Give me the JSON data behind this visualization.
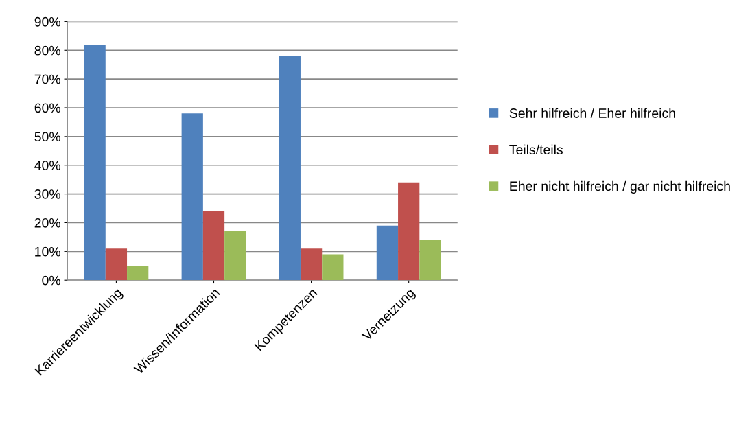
{
  "chart_data": {
    "type": "bar",
    "categories": [
      "Karriereentwicklung",
      "Wissen/Information",
      "Kompetenzen",
      "Vernetzung"
    ],
    "series": [
      {
        "name": "Sehr hilfreich / Eher hilfreich",
        "color": "#4f81bd",
        "values": [
          82,
          58,
          78,
          19
        ]
      },
      {
        "name": "Teils/teils",
        "color": "#c0504d",
        "values": [
          11,
          24,
          11,
          34
        ]
      },
      {
        "name": "Eher nicht hilfreich / gar nicht hilfreich",
        "color": "#9bbb59",
        "values": [
          5,
          17,
          9,
          14
        ]
      }
    ],
    "ylim": [
      0,
      90
    ],
    "yticks": [
      {
        "value": 0,
        "label": "0%"
      },
      {
        "value": 10,
        "label": "10%"
      },
      {
        "value": 20,
        "label": "20%"
      },
      {
        "value": 30,
        "label": "30%"
      },
      {
        "value": 40,
        "label": "40%"
      },
      {
        "value": 50,
        "label": "50%"
      },
      {
        "value": 60,
        "label": "60%"
      },
      {
        "value": 70,
        "label": "70%"
      },
      {
        "value": 80,
        "label": "80%"
      },
      {
        "value": 90,
        "label": "90%"
      }
    ],
    "grid": "y",
    "legend": "right"
  }
}
